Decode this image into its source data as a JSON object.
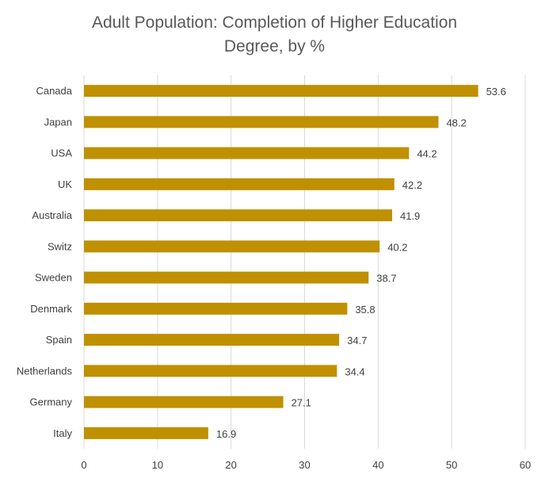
{
  "chart_data": {
    "type": "bar",
    "orientation": "horizontal",
    "title": "Adult Population: Completion of Higher Education Degree, by %",
    "title_lines": [
      "Adult Population: Completion of Higher Education",
      "Degree, by %"
    ],
    "xlabel": "",
    "ylabel": "",
    "categories": [
      "Canada",
      "Japan",
      "USA",
      "UK",
      "Australia",
      "Switz",
      "Sweden",
      "Denmark",
      "Spain",
      "Netherlands",
      "Germany",
      "Italy"
    ],
    "values": [
      53.6,
      48.2,
      44.2,
      42.2,
      41.9,
      40.2,
      38.7,
      35.8,
      34.7,
      34.4,
      27.1,
      16.9
    ],
    "xlim": [
      0,
      60
    ],
    "xticks": [
      0,
      10,
      20,
      30,
      40,
      50,
      60
    ],
    "grid": true,
    "legend": "none",
    "bar_color": "#BF9000",
    "grid_color": "#D9D9D9"
  }
}
